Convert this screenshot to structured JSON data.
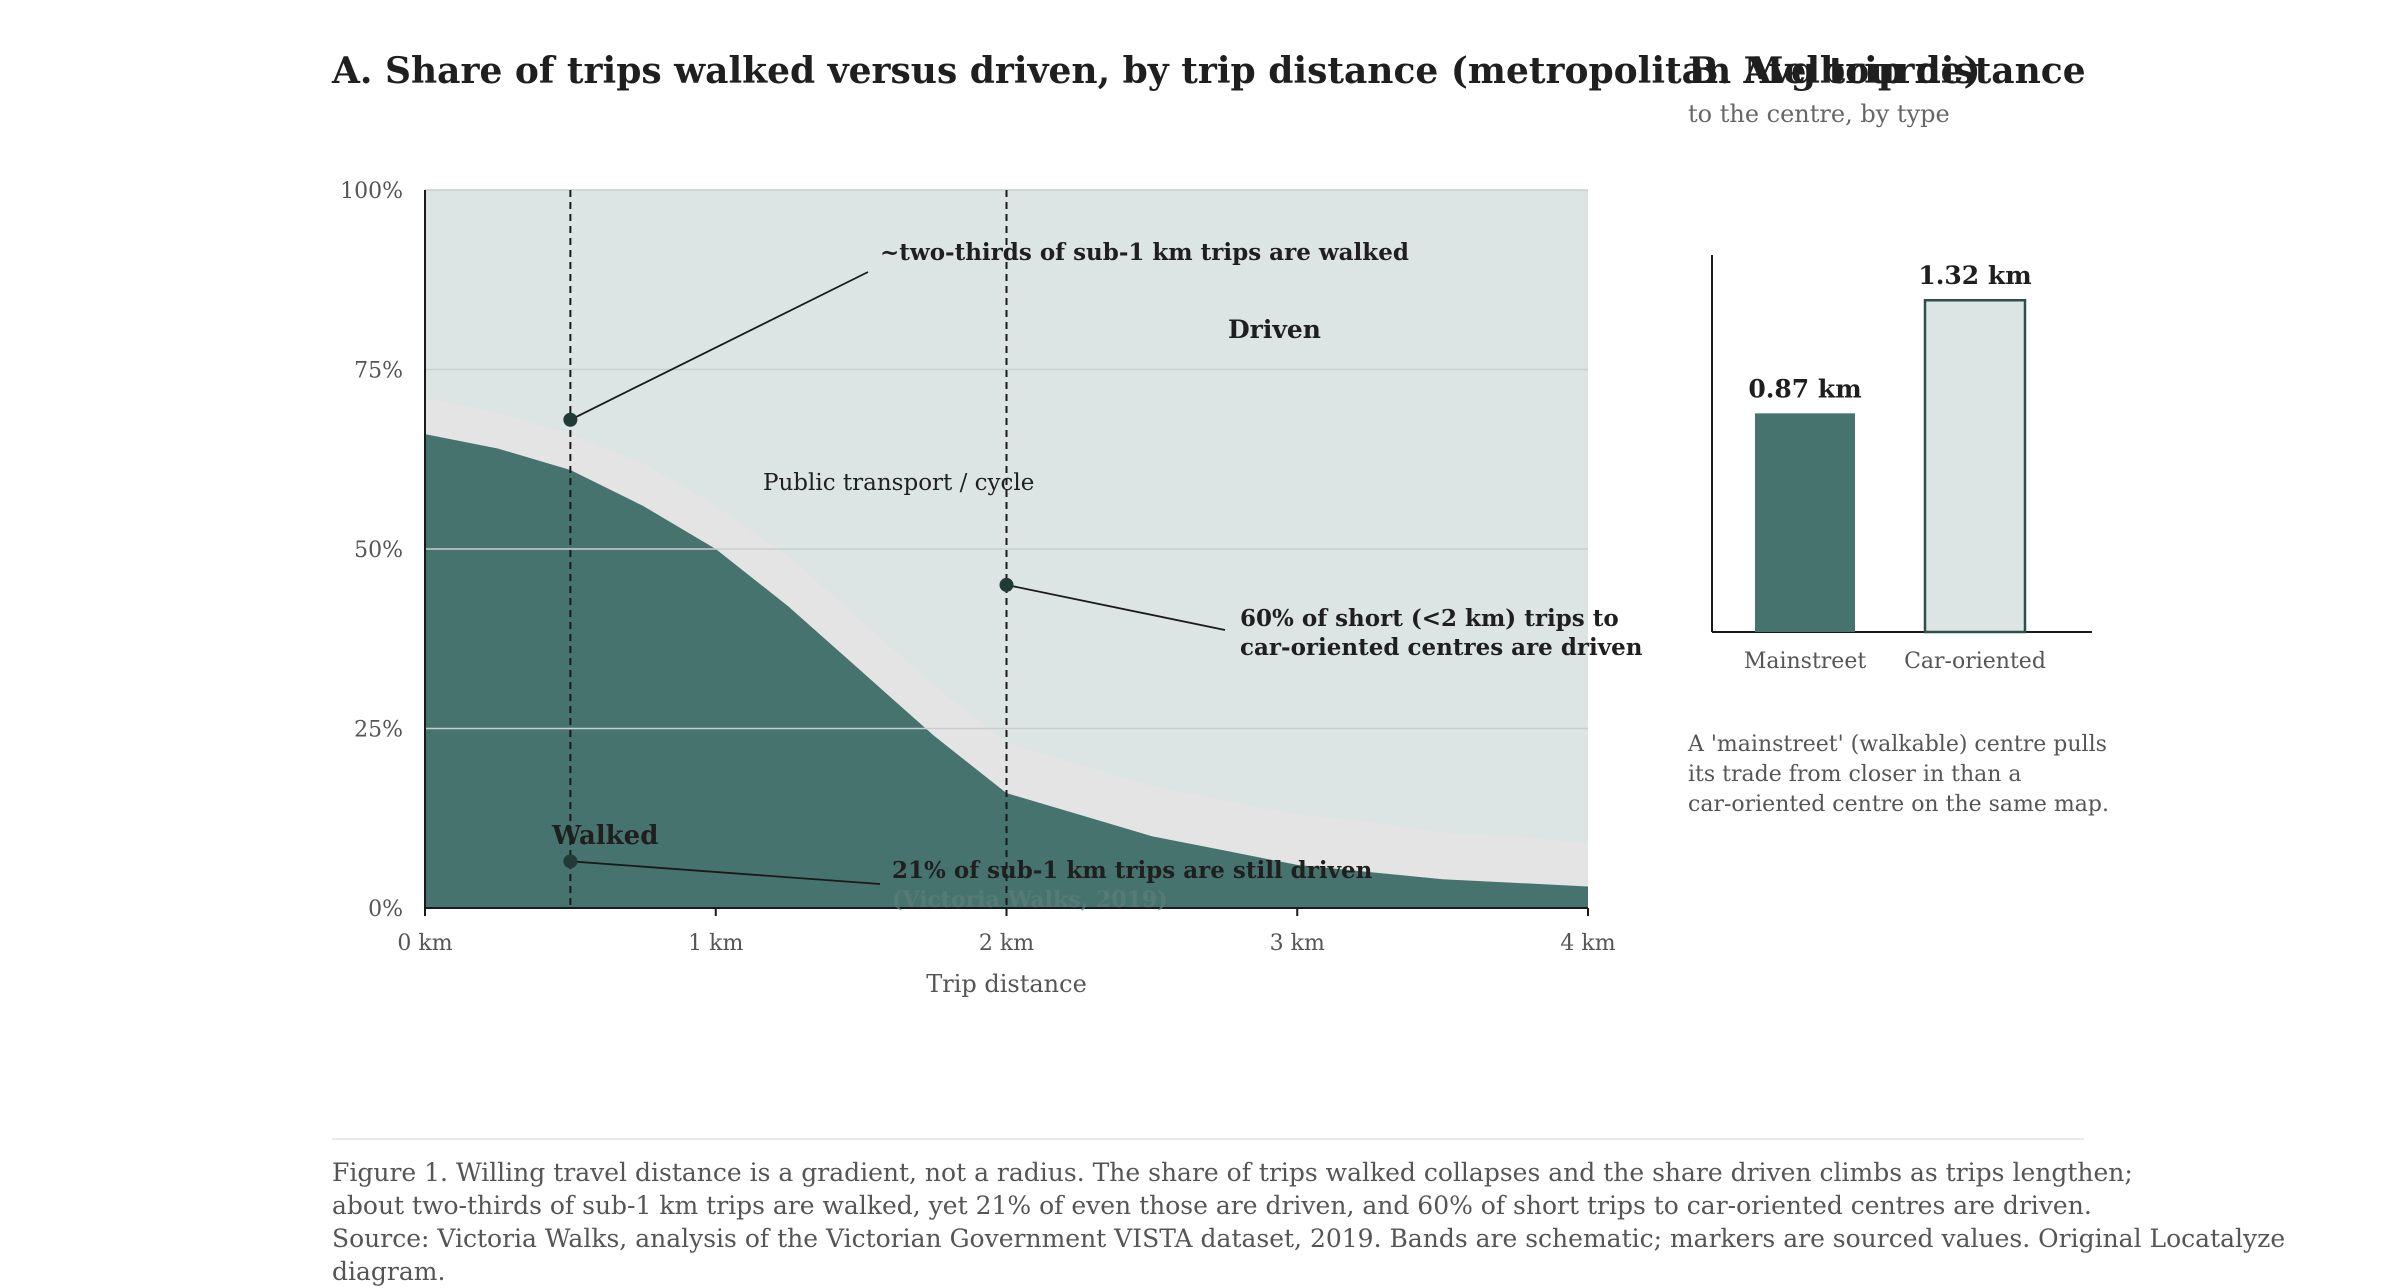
{
  "chart_data": [
    {
      "type": "area",
      "title": "A. Share of trips walked versus driven, by trip distance (metropolitan Melbourne)",
      "xlabel": "Trip distance",
      "ylabel": "",
      "xlim": [
        0,
        4
      ],
      "ylim": [
        0,
        100
      ],
      "x_ticks": [
        "0 km",
        "1 km",
        "2 km",
        "3 km",
        "4 km"
      ],
      "y_ticks": [
        "0%",
        "25%",
        "50%",
        "75%",
        "100%"
      ],
      "grid": true,
      "x": [
        0,
        0.25,
        0.5,
        0.75,
        1.0,
        1.25,
        1.5,
        1.75,
        2.0,
        2.25,
        2.5,
        2.75,
        3.0,
        3.25,
        3.5,
        3.75,
        4.0
      ],
      "series": [
        {
          "name": "Walked",
          "values": [
            66,
            64,
            61,
            56,
            50,
            42,
            33,
            24,
            16,
            13,
            10,
            8,
            6,
            5,
            4,
            3.5,
            3
          ],
          "color": "#47736f"
        },
        {
          "name": "Public transport / cycle",
          "values": [
            5,
            5,
            5,
            6,
            6,
            7,
            7,
            7,
            7,
            7,
            7,
            7,
            7,
            7,
            6.5,
            6.5,
            6
          ],
          "color": "#e4e4e4"
        },
        {
          "name": "Driven",
          "values": [
            29,
            31,
            34,
            38,
            44,
            51,
            60,
            69,
            77,
            80,
            83,
            85,
            87,
            88,
            89.5,
            90,
            91
          ],
          "color": "#dce5e3"
        }
      ],
      "markers": [
        {
          "x": 0.5,
          "y": 68,
          "label": "~two-thirds of sub-1 km trips are walked"
        },
        {
          "x": 2.0,
          "y": 45,
          "label": "60% of short (<2 km) trips to car-oriented centres are driven"
        },
        {
          "x": 0.5,
          "y": 6.5,
          "label": "21% of sub-1 km trips are still driven"
        }
      ],
      "annotation_lines": [
        "60% of short (<2 km) trips to",
        "car-oriented centres are driven"
      ],
      "faint_text": "(Victoria Walks, 2019)",
      "vlines_x": [
        0.5,
        2.0
      ]
    },
    {
      "type": "bar",
      "title": "B. Avg trip distance",
      "subtitle": "to the centre, by type",
      "categories": [
        "Mainstreet",
        "Car-oriented"
      ],
      "values": [
        0.87,
        1.32
      ],
      "value_labels": [
        "0.87 km",
        "1.32 km"
      ],
      "ylim": [
        0,
        1.5
      ],
      "colors": [
        "#47736f",
        "#dce5e3"
      ],
      "note_lines": [
        "A 'mainstreet' (walkable) centre pulls",
        "its trade from closer in than a",
        "car-oriented centre on the same map."
      ]
    }
  ],
  "caption": {
    "line1": "Figure 1. Willing travel distance is a gradient, not a radius. The share of trips walked collapses and the share driven climbs as trips lengthen;",
    "line2": "about two-thirds of sub-1 km trips are walked, yet 21% of even those are driven, and 60% of short trips to car-oriented centres are driven.",
    "line3": "Source: Victoria Walks, analysis of the Victorian Government VISTA dataset, 2019. Bands are schematic; markers are sourced values. Original Locatalyze diagram."
  }
}
